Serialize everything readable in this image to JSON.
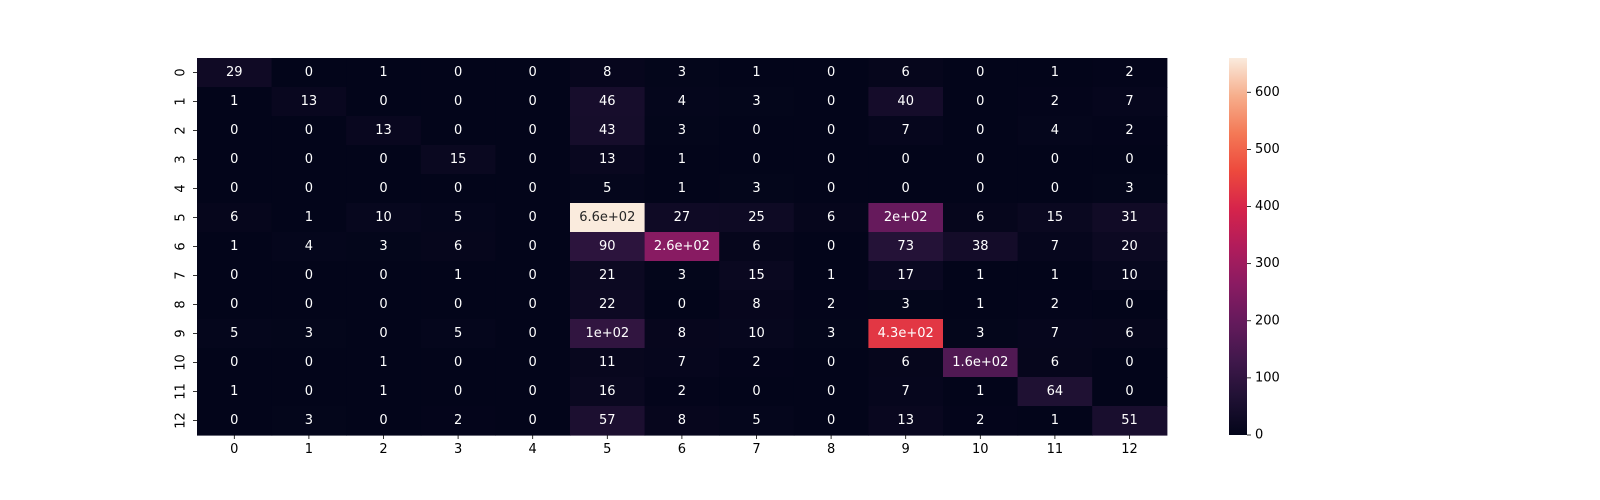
{
  "chart_data": {
    "type": "heatmap",
    "title": "",
    "xlabel": "",
    "ylabel": "",
    "x_categories": [
      "0",
      "1",
      "2",
      "3",
      "4",
      "5",
      "6",
      "7",
      "8",
      "9",
      "10",
      "11",
      "12"
    ],
    "y_categories": [
      "0",
      "1",
      "2",
      "3",
      "4",
      "5",
      "6",
      "7",
      "8",
      "9",
      "10",
      "11",
      "12"
    ],
    "values": [
      [
        29,
        0,
        1,
        0,
        0,
        8,
        3,
        1,
        0,
        6,
        0,
        1,
        2
      ],
      [
        1,
        13,
        0,
        0,
        0,
        46,
        4,
        3,
        0,
        40,
        0,
        2,
        7
      ],
      [
        0,
        0,
        13,
        0,
        0,
        43,
        3,
        0,
        0,
        7,
        0,
        4,
        2
      ],
      [
        0,
        0,
        0,
        15,
        0,
        13,
        1,
        0,
        0,
        0,
        0,
        0,
        0
      ],
      [
        0,
        0,
        0,
        0,
        0,
        5,
        1,
        3,
        0,
        0,
        0,
        0,
        3
      ],
      [
        6,
        1,
        10,
        5,
        0,
        660,
        27,
        25,
        6,
        200,
        6,
        15,
        31
      ],
      [
        1,
        4,
        3,
        6,
        0,
        90,
        260,
        6,
        0,
        73,
        38,
        7,
        20
      ],
      [
        0,
        0,
        0,
        1,
        0,
        21,
        3,
        15,
        1,
        17,
        1,
        1,
        10
      ],
      [
        0,
        0,
        0,
        0,
        0,
        22,
        0,
        8,
        2,
        3,
        1,
        2,
        0
      ],
      [
        5,
        3,
        0,
        5,
        0,
        100,
        8,
        10,
        3,
        430,
        3,
        7,
        6
      ],
      [
        0,
        0,
        1,
        0,
        0,
        11,
        7,
        2,
        0,
        6,
        160,
        6,
        0
      ],
      [
        1,
        0,
        1,
        0,
        0,
        16,
        2,
        0,
        0,
        7,
        1,
        64,
        0
      ],
      [
        0,
        3,
        0,
        2,
        0,
        57,
        8,
        5,
        0,
        13,
        2,
        1,
        51
      ]
    ],
    "annotations": [
      [
        "29",
        "0",
        "1",
        "0",
        "0",
        "8",
        "3",
        "1",
        "0",
        "6",
        "0",
        "1",
        "2"
      ],
      [
        "1",
        "13",
        "0",
        "0",
        "0",
        "46",
        "4",
        "3",
        "0",
        "40",
        "0",
        "2",
        "7"
      ],
      [
        "0",
        "0",
        "13",
        "0",
        "0",
        "43",
        "3",
        "0",
        "0",
        "7",
        "0",
        "4",
        "2"
      ],
      [
        "0",
        "0",
        "0",
        "15",
        "0",
        "13",
        "1",
        "0",
        "0",
        "0",
        "0",
        "0",
        "0"
      ],
      [
        "0",
        "0",
        "0",
        "0",
        "0",
        "5",
        "1",
        "3",
        "0",
        "0",
        "0",
        "0",
        "3"
      ],
      [
        "6",
        "1",
        "10",
        "5",
        "0",
        "6.6e+02",
        "27",
        "25",
        "6",
        "2e+02",
        "6",
        "15",
        "31"
      ],
      [
        "1",
        "4",
        "3",
        "6",
        "0",
        "90",
        "2.6e+02",
        "6",
        "0",
        "73",
        "38",
        "7",
        "20"
      ],
      [
        "0",
        "0",
        "0",
        "1",
        "0",
        "21",
        "3",
        "15",
        "1",
        "17",
        "1",
        "1",
        "10"
      ],
      [
        "0",
        "0",
        "0",
        "0",
        "0",
        "22",
        "0",
        "8",
        "2",
        "3",
        "1",
        "2",
        "0"
      ],
      [
        "5",
        "3",
        "0",
        "5",
        "0",
        "1e+02",
        "8",
        "10",
        "3",
        "4.3e+02",
        "3",
        "7",
        "6"
      ],
      [
        "0",
        "0",
        "1",
        "0",
        "0",
        "11",
        "7",
        "2",
        "0",
        "6",
        "1.6e+02",
        "6",
        "0"
      ],
      [
        "1",
        "0",
        "1",
        "0",
        "0",
        "16",
        "2",
        "0",
        "0",
        "7",
        "1",
        "64",
        "0"
      ],
      [
        "0",
        "3",
        "0",
        "2",
        "0",
        "57",
        "8",
        "5",
        "0",
        "13",
        "2",
        "1",
        "51"
      ]
    ],
    "colormap": "rocket",
    "vmin": 0,
    "vmax": 660,
    "colorbar_ticks": [
      0,
      100,
      200,
      300,
      400,
      500,
      600
    ],
    "colorbar_tick_labels": [
      "0",
      "100",
      "200",
      "300",
      "400",
      "500",
      "600"
    ],
    "grid": false
  }
}
